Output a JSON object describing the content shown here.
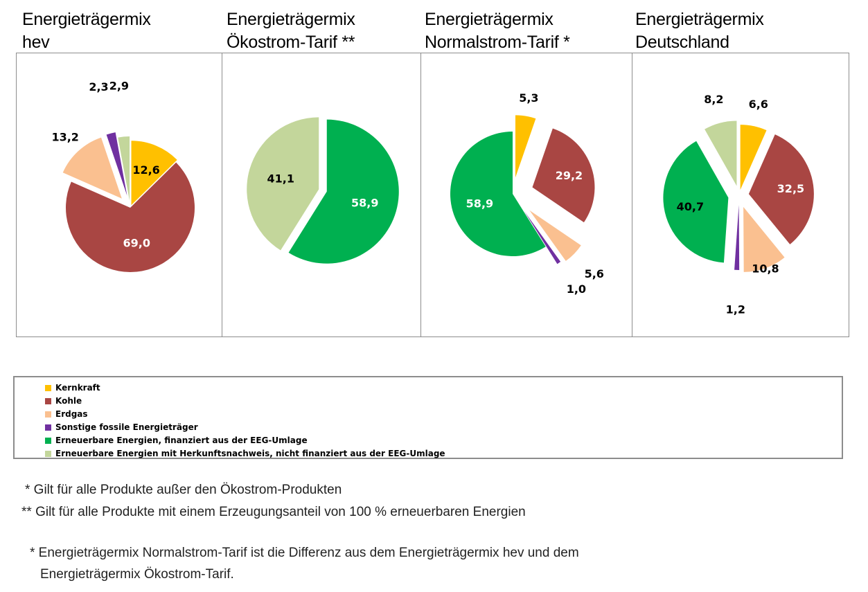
{
  "titles": [
    {
      "line1": "Energieträgermix",
      "line2": "hev"
    },
    {
      "line1": "Energieträgermix",
      "line2": "Ökostrom-Tarif **"
    },
    {
      "line1": "Energieträgermix",
      "line2": "Normalstrom-Tarif *"
    },
    {
      "line1": "Energieträgermix",
      "line2": "Deutschland"
    }
  ],
  "chart_data": [
    {
      "type": "pie",
      "title": "Energieträgermix hev",
      "categories": [
        "Kernkraft",
        "Kohle",
        "Erdgas",
        "Sonstige fossile Energieträger",
        "Erneuerbare Energien mit Herkunftsnachweis, nicht finanziert aus der EEG-Umlage"
      ],
      "values": [
        12.6,
        69.0,
        13.2,
        2.3,
        2.9
      ],
      "labels": [
        "12,6",
        "69,0",
        "13,2",
        "2,3",
        "2,9"
      ]
    },
    {
      "type": "pie",
      "title": "Energieträgermix Ökostrom-Tarif **",
      "categories": [
        "Erneuerbare Energien, finanziert aus der EEG-Umlage",
        "Erneuerbare Energien mit Herkunftsnachweis, nicht finanziert aus der EEG-Umlage"
      ],
      "values": [
        58.9,
        41.1
      ],
      "labels": [
        "58,9",
        "41,1"
      ]
    },
    {
      "type": "pie",
      "title": "Energieträgermix Normalstrom-Tarif *",
      "categories": [
        "Kernkraft",
        "Kohle",
        "Erdgas",
        "Sonstige fossile Energieträger",
        "Erneuerbare Energien, finanziert aus der EEG-Umlage"
      ],
      "values": [
        5.3,
        29.2,
        5.6,
        1.0,
        58.9
      ],
      "labels": [
        "5,3",
        "29,2",
        "5,6",
        "1,0",
        "58,9"
      ]
    },
    {
      "type": "pie",
      "title": "Energieträgermix Deutschland",
      "categories": [
        "Kernkraft",
        "Kohle",
        "Erdgas",
        "Sonstige fossile Energieträger",
        "Erneuerbare Energien, finanziert aus der EEG-Umlage",
        "Erneuerbare Energien mit Herkunftsnachweis, nicht finanziert aus der EEG-Umlage"
      ],
      "values": [
        6.6,
        32.5,
        10.8,
        1.2,
        40.7,
        8.2
      ],
      "labels": [
        "6,6",
        "32,5",
        "10,8",
        "1,2",
        "40,7",
        "8,2"
      ]
    }
  ],
  "legend": [
    {
      "label": "Kernkraft",
      "color": "#FFC000"
    },
    {
      "label": "Kohle",
      "color": "#A94643"
    },
    {
      "label": "Erdgas",
      "color": "#FAC090"
    },
    {
      "label": "Sonstige fossile Energieträger",
      "color": "#7030A0"
    },
    {
      "label": "Erneuerbare Energien, finanziert aus der EEG-Umlage",
      "color": "#00B050"
    },
    {
      "label": "Erneuerbare Energien mit Herkunftsnachweis, nicht finanziert aus der EEG-Umlage",
      "color": "#C3D69B"
    }
  ],
  "colors": {
    "Kernkraft": "#FFC000",
    "Kohle": "#A94643",
    "Erdgas": "#FAC090",
    "Sonstige fossile Energieträger": "#7030A0",
    "Erneuerbare Energien, finanziert aus der EEG-Umlage": "#00B050",
    "Erneuerbare Energien mit Herkunftsnachweis, nicht finanziert aus der EEG-Umlage": "#C3D69B"
  },
  "footnotes": {
    "note1": "* Gilt für alle Produkte außer den Ökostrom-Produkten",
    "note2": "** Gilt für alle Produkte mit einem Erzeugungsanteil von 100 % erneuerbaren Energien",
    "note3_line1": "* Energieträgermix Normalstrom-Tarif ist die Differenz aus dem Energieträgermix hev und dem",
    "note3_line2": "Energieträgermix Ökostrom-Tarif."
  }
}
